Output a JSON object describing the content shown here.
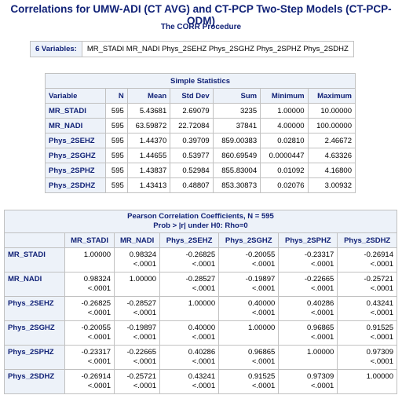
{
  "header": {
    "title": "Correlations for UMW-ADI (CT AVG) and CT-PCP Two-Step Models (CT-PCP-ODM)",
    "procedure": "The CORR Procedure"
  },
  "variables": {
    "label": "6 Variables:",
    "list": "MR_STADI MR_NADI Phys_2SEHZ Phys_2SGHZ Phys_2SPHZ Phys_2SDHZ"
  },
  "simple_statistics": {
    "title": "Simple Statistics",
    "columns": [
      "Variable",
      "N",
      "Mean",
      "Std Dev",
      "Sum",
      "Minimum",
      "Maximum"
    ],
    "rows": [
      [
        "MR_STADI",
        "595",
        "5.43681",
        "2.69079",
        "3235",
        "1.00000",
        "10.00000"
      ],
      [
        "MR_NADI",
        "595",
        "63.59872",
        "22.72084",
        "37841",
        "4.00000",
        "100.00000"
      ],
      [
        "Phys_2SEHZ",
        "595",
        "1.44370",
        "0.39709",
        "859.00383",
        "0.02810",
        "2.46672"
      ],
      [
        "Phys_2SGHZ",
        "595",
        "1.44655",
        "0.53977",
        "860.69549",
        "0.0000447",
        "4.63326"
      ],
      [
        "Phys_2SPHZ",
        "595",
        "1.43837",
        "0.52984",
        "855.83004",
        "0.01092",
        "4.16800"
      ],
      [
        "Phys_2SDHZ",
        "595",
        "1.43413",
        "0.48807",
        "853.30873",
        "0.02076",
        "3.00932"
      ]
    ]
  },
  "pearson": {
    "title": "Pearson Correlation Coefficients, N = 595",
    "subtitle": "Prob > |r| under H0: Rho=0",
    "columns": [
      "MR_STADI",
      "MR_NADI",
      "Phys_2SEHZ",
      "Phys_2SGHZ",
      "Phys_2SPHZ",
      "Phys_2SDHZ"
    ],
    "rows": [
      {
        "label": "MR_STADI",
        "cells": [
          {
            "r": "1.00000"
          },
          {
            "r": "0.98324",
            "p": "<.0001"
          },
          {
            "r": "-0.26825",
            "p": "<.0001"
          },
          {
            "r": "-0.20055",
            "p": "<.0001"
          },
          {
            "r": "-0.23317",
            "p": "<.0001"
          },
          {
            "r": "-0.26914",
            "p": "<.0001"
          }
        ]
      },
      {
        "label": "MR_NADI",
        "cells": [
          {
            "r": "0.98324",
            "p": "<.0001"
          },
          {
            "r": "1.00000"
          },
          {
            "r": "-0.28527",
            "p": "<.0001"
          },
          {
            "r": "-0.19897",
            "p": "<.0001"
          },
          {
            "r": "-0.22665",
            "p": "<.0001"
          },
          {
            "r": "-0.25721",
            "p": "<.0001"
          }
        ]
      },
      {
        "label": "Phys_2SEHZ",
        "cells": [
          {
            "r": "-0.26825",
            "p": "<.0001"
          },
          {
            "r": "-0.28527",
            "p": "<.0001"
          },
          {
            "r": "1.00000"
          },
          {
            "r": "0.40000",
            "p": "<.0001"
          },
          {
            "r": "0.40286",
            "p": "<.0001"
          },
          {
            "r": "0.43241",
            "p": "<.0001"
          }
        ]
      },
      {
        "label": "Phys_2SGHZ",
        "cells": [
          {
            "r": "-0.20055",
            "p": "<.0001"
          },
          {
            "r": "-0.19897",
            "p": "<.0001"
          },
          {
            "r": "0.40000",
            "p": "<.0001"
          },
          {
            "r": "1.00000"
          },
          {
            "r": "0.96865",
            "p": "<.0001"
          },
          {
            "r": "0.91525",
            "p": "<.0001"
          }
        ]
      },
      {
        "label": "Phys_2SPHZ",
        "cells": [
          {
            "r": "-0.23317",
            "p": "<.0001"
          },
          {
            "r": "-0.22665",
            "p": "<.0001"
          },
          {
            "r": "0.40286",
            "p": "<.0001"
          },
          {
            "r": "0.96865",
            "p": "<.0001"
          },
          {
            "r": "1.00000"
          },
          {
            "r": "0.97309",
            "p": "<.0001"
          }
        ]
      },
      {
        "label": "Phys_2SDHZ",
        "cells": [
          {
            "r": "-0.26914",
            "p": "<.0001"
          },
          {
            "r": "-0.25721",
            "p": "<.0001"
          },
          {
            "r": "0.43241",
            "p": "<.0001"
          },
          {
            "r": "0.91525",
            "p": "<.0001"
          },
          {
            "r": "0.97309",
            "p": "<.0001"
          },
          {
            "r": "1.00000"
          }
        ]
      }
    ]
  }
}
